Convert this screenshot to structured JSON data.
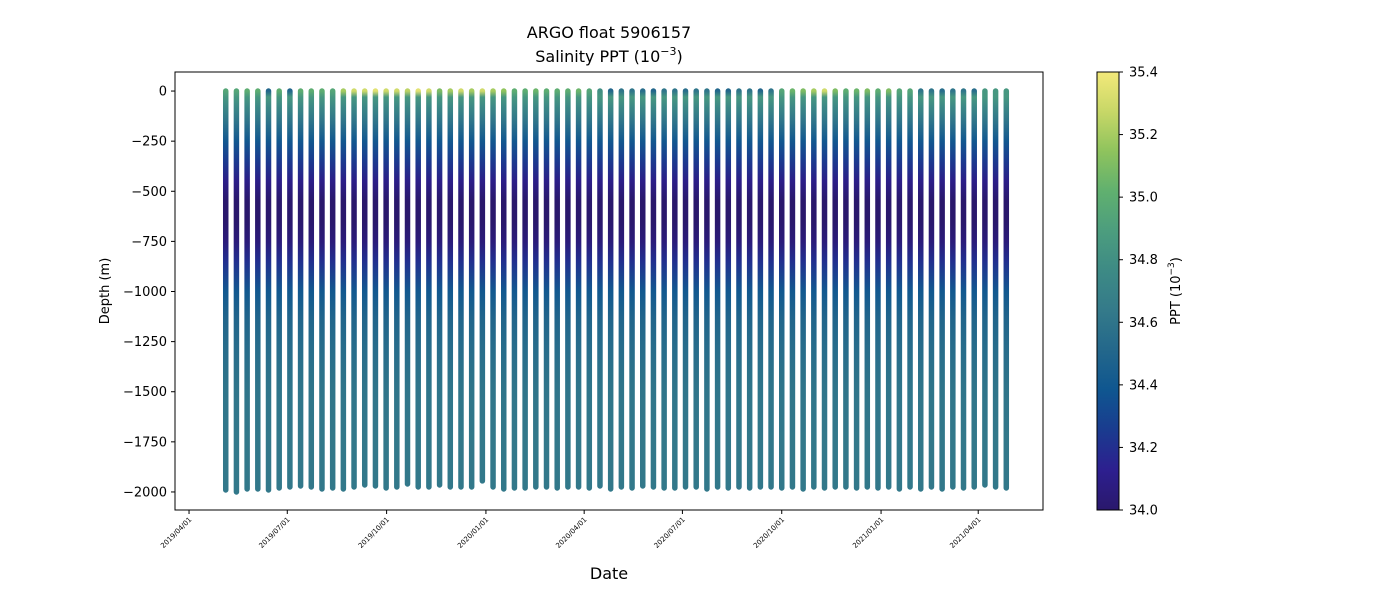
{
  "chart_data": {
    "type": "scatter",
    "title": "ARGO float 5906157",
    "subtitle_text": "Salinity PPT (10",
    "subtitle_exp": "−3",
    "subtitle_close": ")",
    "xlabel": "Date",
    "ylabel": "Depth (m)",
    "x_tick_labels": [
      "2019/04/01",
      "2019/07/01",
      "2019/10/01",
      "2020/01/01",
      "2020/04/01",
      "2020/07/01",
      "2020/10/01",
      "2021/01/01",
      "2021/04/01"
    ],
    "x_tick_dates": [
      "2019-04-01",
      "2019-07-01",
      "2019-10-01",
      "2020-01-01",
      "2020-04-01",
      "2020-07-01",
      "2020-10-01",
      "2021-01-01",
      "2021-04-01"
    ],
    "xlim": [
      "2019-03-19",
      "2021-05-31"
    ],
    "y_ticks": [
      0,
      -250,
      -500,
      -750,
      -1000,
      -1250,
      -1500,
      -1750,
      -2000
    ],
    "y_tick_labels": [
      "0",
      "−250",
      "−500",
      "−750",
      "−1000",
      "−1250",
      "−1500",
      "−1750",
      "−2000"
    ],
    "ylim": [
      -2090,
      95
    ],
    "grid": false,
    "profiles": {
      "first_date": "2019-05-05",
      "last_date": "2021-04-27",
      "count": 74,
      "deep_ends_m": [
        -1990,
        -2000,
        -1985,
        -1985,
        -1990,
        -1980,
        -1975,
        -1970,
        -1975,
        -1985,
        -1980,
        -1985,
        -1975,
        -1965,
        -1970,
        -1980,
        -1975,
        -1960,
        -1975,
        -1975,
        -1965,
        -1975,
        -1975,
        -1975,
        -1945,
        -1975,
        -1985,
        -1980,
        -1980,
        -1975,
        -1975,
        -1980,
        -1975,
        -1975,
        -1980,
        -1970,
        -1985,
        -1975,
        -1980,
        -1970,
        -1975,
        -1980,
        -1980,
        -1975,
        -1975,
        -1985,
        -1975,
        -1980,
        -1975,
        -1980,
        -1975,
        -1975,
        -1980,
        -1975,
        -1985,
        -1975,
        -1980,
        -1975,
        -1975,
        -1980,
        -1975,
        -1980,
        -1975,
        -1985,
        -1975,
        -1985,
        -1975,
        -1985,
        -1975,
        -1980,
        -1975,
        -1965,
        -1975,
        -1980
      ],
      "surface_salinity": [
        34.95,
        34.95,
        35.0,
        35.0,
        34.5,
        35.0,
        34.5,
        35.0,
        35.0,
        35.0,
        34.95,
        35.2,
        35.3,
        35.3,
        35.35,
        35.3,
        35.3,
        35.25,
        35.35,
        35.3,
        35.1,
        35.2,
        35.3,
        35.2,
        35.3,
        35.2,
        35.15,
        35.0,
        35.0,
        35.05,
        35.0,
        35.0,
        35.0,
        35.05,
        34.95,
        34.8,
        34.5,
        34.6,
        34.6,
        34.55,
        34.5,
        34.6,
        34.6,
        34.55,
        34.6,
        34.6,
        34.5,
        34.5,
        34.6,
        34.6,
        34.5,
        34.6,
        34.95,
        35.05,
        35.1,
        35.2,
        35.3,
        35.1,
        35.0,
        35.05,
        35.1,
        35.0,
        35.1,
        34.95,
        34.95,
        34.6,
        34.6,
        34.55,
        34.6,
        34.6,
        34.55,
        34.85,
        34.85,
        34.85
      ]
    },
    "salinity_profile": {
      "depth_m": [
        -30,
        -80,
        -150,
        -250,
        -350,
        -450,
        -550,
        -650,
        -750,
        -850,
        -1000,
        -1150,
        -1300,
        -1500,
        -1750,
        -2000
      ],
      "salinity": [
        34.85,
        34.75,
        34.6,
        34.4,
        34.25,
        34.1,
        34.0,
        34.0,
        34.05,
        34.2,
        34.4,
        34.5,
        34.55,
        34.6,
        34.62,
        34.62
      ]
    },
    "colorbar": {
      "label_text": "PPT (10",
      "label_exp": "−3",
      "label_close": ")",
      "vmin": 34.0,
      "vmax": 35.4,
      "ticks": [
        34.0,
        34.2,
        34.4,
        34.6,
        34.8,
        35.0,
        35.2,
        35.4
      ],
      "tick_labels": [
        "34.0",
        "34.2",
        "34.4",
        "34.6",
        "34.8",
        "35.0",
        "35.2",
        "35.4"
      ],
      "colormap": "haline",
      "colormap_stops": [
        "#2a186c",
        "#2d1f8f",
        "#1a3b8f",
        "#0f5690",
        "#23678b",
        "#347a8a",
        "#3d8a85",
        "#4c9d7e",
        "#60b06f",
        "#8ec35d",
        "#c7d767",
        "#f3e97a"
      ]
    }
  }
}
